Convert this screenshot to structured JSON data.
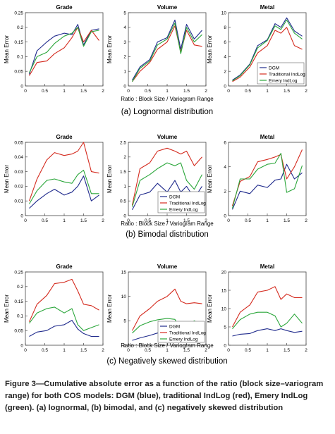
{
  "caption": "Figure 3—Cumulative absolute error as a function of the ratio (block size–variogram range) for both COS models: DGM (blue), traditional IndLog (red), Emery IndLog (green). (a) lognormal, (b) bimodal, and (c) negatively skewed distribution",
  "colors": {
    "DGM": "#1f2a8c",
    "Traditional IndLog": "#d42a1e",
    "Emery IndLog": "#2aa63a"
  },
  "rows": [
    {
      "subtitle": "(a) Lognormal distribution",
      "xlabel": "Ratio : Block Size / Variogram Range",
      "legend_entries": [
        "DGM",
        "Traditional IndLog",
        "Emery IndLog"
      ],
      "legend_panel": 2
    },
    {
      "subtitle": "(b) Bimodal distribution",
      "xlabel": "Ratio : Block Size / Variogram Range",
      "legend_entries": [
        "DGM",
        "Traditional IndLog",
        "Emery IndLog"
      ],
      "legend_panel": 1
    },
    {
      "subtitle": "(c) Negatively skewed distribution",
      "xlabel": "Ratio : Block Size / Variogram Range",
      "legend_entries": [
        "DGM",
        "Traditional IndLog",
        "Emery IndLog"
      ],
      "legend_panel": 1
    }
  ],
  "chart_data": [
    {
      "type": "line",
      "title": "Grade",
      "ylabel": "Mean Error",
      "xlim": [
        0,
        2
      ],
      "ylim": [
        0,
        0.25
      ],
      "xticks": [
        "0",
        "0.5",
        "1",
        "1.5",
        "2"
      ],
      "yticks": [
        "0",
        "0.05",
        "0.1",
        "0.15",
        "0.2",
        "0.25"
      ],
      "x": [
        0.1,
        0.3,
        0.55,
        0.75,
        1.0,
        1.2,
        1.35,
        1.5,
        1.7,
        1.9
      ],
      "series": [
        {
          "name": "DGM",
          "values": [
            0.04,
            0.12,
            0.15,
            0.17,
            0.18,
            0.175,
            0.21,
            0.14,
            0.19,
            0.195
          ]
        },
        {
          "name": "Traditional IndLog",
          "values": [
            0.035,
            0.08,
            0.085,
            0.11,
            0.13,
            0.165,
            0.2,
            0.15,
            0.19,
            0.155
          ]
        },
        {
          "name": "Emery IndLog",
          "values": [
            0.045,
            0.1,
            0.115,
            0.145,
            0.17,
            0.18,
            0.2,
            0.135,
            0.185,
            0.19
          ]
        }
      ]
    },
    {
      "type": "line",
      "title": "Volume",
      "ylabel": "Mean Error",
      "xlim": [
        0,
        2
      ],
      "ylim": [
        0,
        5
      ],
      "xticks": [
        "0",
        "0.5",
        "1",
        "1.5",
        "2"
      ],
      "yticks": [
        "0",
        "1",
        "2",
        "3",
        "4",
        "5"
      ],
      "x": [
        0.1,
        0.3,
        0.55,
        0.75,
        1.0,
        1.2,
        1.35,
        1.5,
        1.7,
        1.9
      ],
      "series": [
        {
          "name": "DGM",
          "values": [
            0.4,
            1.3,
            1.8,
            3.0,
            3.3,
            4.5,
            2.5,
            4.2,
            3.2,
            3.8
          ]
        },
        {
          "name": "Traditional IndLog",
          "values": [
            0.3,
            1.0,
            1.6,
            2.5,
            3.0,
            4.1,
            2.3,
            3.8,
            2.8,
            2.7
          ]
        },
        {
          "name": "Emery IndLog",
          "values": [
            0.3,
            1.2,
            1.7,
            2.8,
            3.2,
            4.3,
            2.2,
            4.0,
            3.0,
            3.5
          ]
        }
      ]
    },
    {
      "type": "line",
      "title": "Metal",
      "ylabel": "Mean Error",
      "xlim": [
        0,
        2
      ],
      "ylim": [
        0,
        10
      ],
      "xticks": [
        "0",
        "0.5",
        "1",
        "1.5",
        "2"
      ],
      "yticks": [
        "0",
        "2",
        "4",
        "6",
        "8",
        "10"
      ],
      "x": [
        0.1,
        0.3,
        0.55,
        0.75,
        1.0,
        1.2,
        1.35,
        1.5,
        1.7,
        1.9
      ],
      "series": [
        {
          "name": "DGM",
          "values": [
            0.8,
            1.5,
            3.0,
            5.5,
            6.3,
            8.5,
            8.0,
            9.3,
            7.5,
            6.8
          ]
        },
        {
          "name": "Traditional IndLog",
          "values": [
            0.6,
            1.2,
            2.6,
            4.5,
            5.5,
            7.6,
            7.2,
            8.0,
            5.5,
            5.0
          ]
        },
        {
          "name": "Emery IndLog",
          "values": [
            0.7,
            1.4,
            2.9,
            5.2,
            6.2,
            8.2,
            7.7,
            9.0,
            7.2,
            6.4
          ]
        }
      ]
    },
    {
      "type": "line",
      "title": "Grade",
      "ylabel": "Mean Error",
      "xlim": [
        0,
        2
      ],
      "ylim": [
        0,
        0.05
      ],
      "xticks": [
        "0",
        "0.5",
        "1",
        "1.5",
        "2"
      ],
      "yticks": [
        "0",
        "0.01",
        "0.02",
        "0.03",
        "0.04",
        "0.05"
      ],
      "x": [
        0.1,
        0.3,
        0.55,
        0.75,
        1.0,
        1.2,
        1.35,
        1.5,
        1.7,
        1.9
      ],
      "series": [
        {
          "name": "DGM",
          "values": [
            0.005,
            0.01,
            0.015,
            0.018,
            0.014,
            0.016,
            0.02,
            0.027,
            0.01,
            0.014
          ]
        },
        {
          "name": "Traditional IndLog",
          "values": [
            0.01,
            0.025,
            0.038,
            0.043,
            0.041,
            0.042,
            0.044,
            0.05,
            0.03,
            0.029
          ]
        },
        {
          "name": "Emery IndLog",
          "values": [
            0.008,
            0.017,
            0.024,
            0.025,
            0.023,
            0.022,
            0.028,
            0.031,
            0.015,
            0.015
          ]
        }
      ]
    },
    {
      "type": "line",
      "title": "Volume",
      "ylabel": "Mean Error",
      "xlim": [
        0,
        2
      ],
      "ylim": [
        0,
        2.5
      ],
      "xticks": [
        "0",
        "0.5",
        "1",
        "1.5",
        "2"
      ],
      "yticks": [
        "0",
        "0.5",
        "1",
        "1.5",
        "2",
        "2.5"
      ],
      "x": [
        0.1,
        0.3,
        0.55,
        0.75,
        1.0,
        1.2,
        1.35,
        1.5,
        1.7,
        1.9
      ],
      "series": [
        {
          "name": "DGM",
          "values": [
            0.2,
            0.7,
            0.8,
            1.1,
            0.8,
            1.2,
            0.8,
            1.0,
            0.6,
            1.0
          ]
        },
        {
          "name": "Traditional IndLog",
          "values": [
            0.35,
            1.6,
            1.8,
            2.2,
            2.3,
            2.2,
            2.1,
            2.2,
            1.7,
            2.0
          ]
        },
        {
          "name": "Emery IndLog",
          "values": [
            0.3,
            1.2,
            1.4,
            1.6,
            1.8,
            1.7,
            1.8,
            1.2,
            0.9,
            1.4
          ]
        }
      ]
    },
    {
      "type": "line",
      "title": "Metal",
      "ylabel": "Mean Error",
      "xlim": [
        0,
        2
      ],
      "ylim": [
        0,
        6
      ],
      "xticks": [
        "0",
        "0.5",
        "1",
        "1.5",
        "2"
      ],
      "yticks": [
        "0",
        "2",
        "4",
        "6"
      ],
      "x": [
        0.1,
        0.3,
        0.55,
        0.75,
        1.0,
        1.2,
        1.35,
        1.5,
        1.7,
        1.9
      ],
      "series": [
        {
          "name": "DGM",
          "values": [
            0.5,
            2.0,
            1.8,
            2.5,
            2.3,
            2.9,
            3.0,
            4.2,
            3.0,
            3.5
          ]
        },
        {
          "name": "Traditional IndLog",
          "values": [
            0.8,
            2.8,
            3.2,
            4.4,
            4.6,
            4.8,
            5.0,
            3.0,
            4.0,
            5.4
          ]
        },
        {
          "name": "Emery IndLog",
          "values": [
            0.6,
            3.0,
            3.0,
            3.8,
            4.2,
            4.3,
            5.1,
            1.9,
            2.2,
            4.1
          ]
        }
      ]
    },
    {
      "type": "line",
      "title": "Grade",
      "ylabel": "Mean Error",
      "xlim": [
        0,
        2
      ],
      "ylim": [
        0,
        0.25
      ],
      "xticks": [
        "0",
        "0.5",
        "1",
        "1.5",
        "2"
      ],
      "yticks": [
        "0",
        "0.05",
        "0.1",
        "0.15",
        "0.2",
        "0.25"
      ],
      "x": [
        0.1,
        0.3,
        0.55,
        0.75,
        1.0,
        1.2,
        1.35,
        1.5,
        1.7,
        1.9
      ],
      "series": [
        {
          "name": "DGM",
          "values": [
            0.03,
            0.045,
            0.05,
            0.065,
            0.07,
            0.085,
            0.055,
            0.04,
            0.03,
            0.03
          ]
        },
        {
          "name": "Traditional IndLog",
          "values": [
            0.08,
            0.14,
            0.17,
            0.21,
            0.215,
            0.225,
            0.185,
            0.14,
            0.135,
            0.12
          ]
        },
        {
          "name": "Emery IndLog",
          "values": [
            0.075,
            0.11,
            0.125,
            0.13,
            0.11,
            0.125,
            0.07,
            0.05,
            0.06,
            0.07
          ]
        }
      ]
    },
    {
      "type": "line",
      "title": "Volume",
      "ylabel": "Mean Error",
      "xlim": [
        0,
        2
      ],
      "ylim": [
        0,
        15
      ],
      "xticks": [
        "0",
        "0.5",
        "1",
        "1.5",
        "2"
      ],
      "yticks": [
        "0",
        "5",
        "10",
        "15"
      ],
      "x": [
        0.1,
        0.3,
        0.55,
        0.75,
        1.0,
        1.2,
        1.35,
        1.5,
        1.7,
        1.9
      ],
      "series": [
        {
          "name": "DGM",
          "values": [
            1.0,
            1.5,
            2.0,
            2.5,
            2.8,
            3.2,
            2.6,
            2.5,
            2.3,
            2.4
          ]
        },
        {
          "name": "Traditional IndLog",
          "values": [
            3.0,
            6.0,
            7.5,
            9.0,
            10.0,
            11.5,
            9.0,
            8.5,
            8.7,
            8.5
          ]
        },
        {
          "name": "Emery IndLog",
          "values": [
            2.5,
            4.0,
            4.8,
            5.2,
            5.5,
            5.3,
            3.2,
            3.8,
            5.0,
            4.0
          ]
        }
      ]
    },
    {
      "type": "line",
      "title": "Metal",
      "ylabel": "Mean Error",
      "xlim": [
        0,
        2
      ],
      "ylim": [
        0,
        20
      ],
      "xticks": [
        "0",
        "0.5",
        "1",
        "1.5",
        "2"
      ],
      "yticks": [
        "0",
        "5",
        "10",
        "15",
        "20"
      ],
      "x": [
        0.1,
        0.3,
        0.55,
        0.75,
        1.0,
        1.2,
        1.35,
        1.5,
        1.7,
        1.9
      ],
      "series": [
        {
          "name": "DGM",
          "values": [
            2.5,
            3.0,
            3.2,
            4.0,
            4.5,
            4.0,
            4.5,
            4.0,
            3.5,
            3.8
          ]
        },
        {
          "name": "Traditional IndLog",
          "values": [
            5.0,
            9.0,
            11.0,
            14.5,
            15.0,
            16.0,
            12.5,
            14.0,
            13.0,
            13.0
          ]
        },
        {
          "name": "Emery IndLog",
          "values": [
            4.5,
            7.0,
            8.5,
            9.0,
            9.0,
            8.0,
            5.0,
            6.0,
            8.5,
            6.0
          ]
        }
      ]
    }
  ]
}
